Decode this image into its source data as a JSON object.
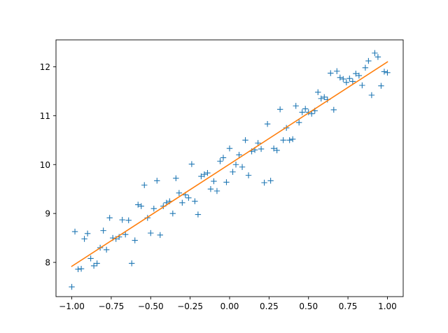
{
  "chart_data": {
    "type": "scatter",
    "title": "",
    "xlabel": "",
    "ylabel": "",
    "xlim": [
      -1.1,
      1.1
    ],
    "ylim": [
      7.3,
      12.55
    ],
    "grid": false,
    "legend": false,
    "x_ticks": [
      -1.0,
      -0.75,
      -0.5,
      -0.25,
      0.0,
      0.25,
      0.5,
      0.75,
      1.0
    ],
    "x_tick_labels": [
      "−1.00",
      "−0.75",
      "−0.50",
      "−0.25",
      "0.00",
      "0.25",
      "0.50",
      "0.75",
      "1.00"
    ],
    "y_ticks": [
      8,
      9,
      10,
      11,
      12
    ],
    "y_tick_labels": [
      "8",
      "9",
      "10",
      "11",
      "12"
    ],
    "series": [
      {
        "kind": "scatter",
        "marker": "+",
        "color": "#1f77b4",
        "x": [
          -1.0,
          -0.98,
          -0.96,
          -0.94,
          -0.92,
          -0.9,
          -0.88,
          -0.86,
          -0.84,
          -0.82,
          -0.8,
          -0.78,
          -0.76,
          -0.74,
          -0.72,
          -0.7,
          -0.68,
          -0.66,
          -0.64,
          -0.62,
          -0.6,
          -0.58,
          -0.56,
          -0.54,
          -0.52,
          -0.5,
          -0.48,
          -0.46,
          -0.44,
          -0.42,
          -0.4,
          -0.38,
          -0.36,
          -0.34,
          -0.32,
          -0.3,
          -0.28,
          -0.26,
          -0.24,
          -0.22,
          -0.2,
          -0.18,
          -0.16,
          -0.14,
          -0.12,
          -0.1,
          -0.08,
          -0.06,
          -0.04,
          -0.02,
          0.0,
          0.02,
          0.04,
          0.06,
          0.08,
          0.1,
          0.12,
          0.14,
          0.16,
          0.18,
          0.2,
          0.22,
          0.24,
          0.26,
          0.28,
          0.3,
          0.32,
          0.34,
          0.36,
          0.38,
          0.4,
          0.42,
          0.44,
          0.46,
          0.48,
          0.5,
          0.52,
          0.54,
          0.56,
          0.58,
          0.6,
          0.62,
          0.64,
          0.66,
          0.68,
          0.7,
          0.72,
          0.74,
          0.76,
          0.78,
          0.8,
          0.82,
          0.84,
          0.86,
          0.88,
          0.9,
          0.92,
          0.94,
          0.96,
          0.98,
          1.0
        ],
        "y": [
          7.5,
          8.63,
          7.86,
          7.87,
          8.48,
          8.59,
          8.08,
          7.93,
          7.98,
          8.3,
          8.65,
          8.26,
          8.91,
          8.5,
          8.48,
          8.52,
          8.87,
          8.57,
          8.86,
          7.98,
          8.45,
          9.18,
          9.15,
          9.58,
          8.91,
          8.6,
          9.1,
          9.67,
          8.56,
          9.15,
          9.22,
          9.25,
          9.0,
          9.72,
          9.42,
          9.22,
          9.38,
          9.32,
          10.01,
          9.25,
          8.98,
          9.76,
          9.8,
          9.83,
          9.5,
          9.66,
          9.46,
          10.07,
          10.14,
          9.64,
          10.33,
          9.85,
          10.0,
          10.2,
          9.95,
          10.5,
          9.78,
          10.27,
          10.3,
          10.44,
          10.32,
          9.63,
          10.83,
          9.67,
          10.33,
          10.29,
          11.13,
          10.5,
          10.75,
          10.5,
          10.52,
          11.2,
          10.86,
          11.07,
          11.14,
          11.07,
          11.04,
          11.1,
          11.48,
          11.35,
          11.38,
          11.33,
          11.87,
          11.12,
          11.91,
          11.78,
          11.75,
          11.68,
          11.76,
          11.7,
          11.86,
          11.82,
          11.62,
          11.98,
          12.12,
          11.42,
          12.28,
          12.2,
          11.61,
          11.9,
          11.88
        ]
      },
      {
        "kind": "line",
        "color": "#ff7f0e",
        "x": [
          -1.0,
          1.0
        ],
        "y": [
          7.92,
          12.1
        ]
      }
    ]
  }
}
